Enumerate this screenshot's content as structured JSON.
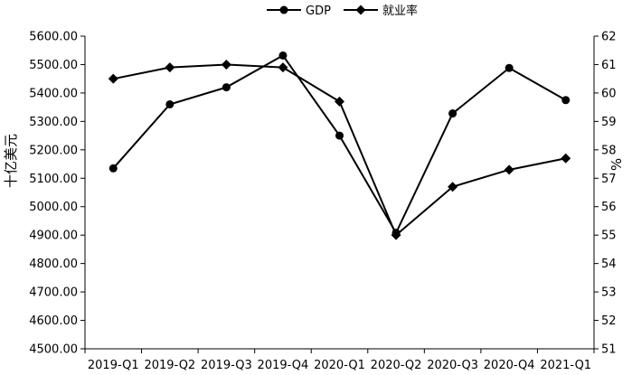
{
  "chart_data": {
    "type": "line",
    "categories": [
      "2019-Q1",
      "2019-Q2",
      "2019-Q3",
      "2019-Q4",
      "2020-Q1",
      "2020-Q2",
      "2020-Q3",
      "2020-Q4",
      "2021-Q1"
    ],
    "series": [
      {
        "name": "GDP",
        "axis": "left",
        "marker": "circle",
        "values": [
          5135,
          5360,
          5420,
          5532,
          5250,
          4908,
          5328,
          5488,
          5375
        ]
      },
      {
        "name": "就业率",
        "axis": "right",
        "marker": "diamond",
        "values": [
          60.5,
          60.9,
          61.0,
          60.9,
          59.7,
          55.0,
          56.7,
          57.3,
          57.7
        ]
      }
    ],
    "ylabel": "十亿美元",
    "y2label": "%",
    "ylim": [
      4500,
      5600
    ],
    "y2lim": [
      51,
      62
    ],
    "yticks": [
      "4500.00",
      "4600.00",
      "4700.00",
      "4800.00",
      "4900.00",
      "5000.00",
      "5100.00",
      "5200.00",
      "5300.00",
      "5400.00",
      "5500.00",
      "5600.00"
    ],
    "y2ticks": [
      "51",
      "52",
      "53",
      "54",
      "55",
      "56",
      "57",
      "58",
      "59",
      "60",
      "61",
      "62"
    ],
    "legend_position": "top-center",
    "grid": false,
    "line_color": "#000000"
  }
}
